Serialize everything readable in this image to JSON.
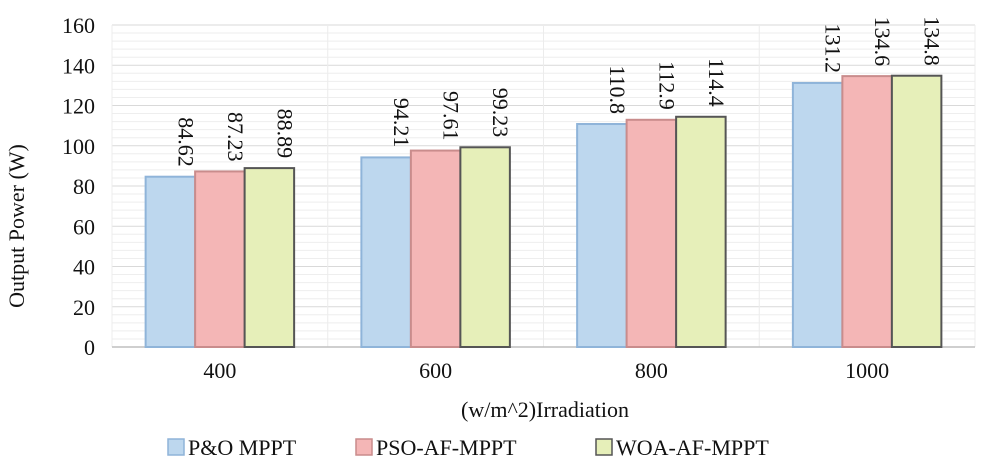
{
  "chart_data": {
    "type": "bar",
    "title": "",
    "xlabel": "(w/m^2)Irradiation",
    "ylabel": "Output Power (W)",
    "ylim": [
      0,
      160
    ],
    "yticks": [
      0,
      20,
      40,
      60,
      80,
      100,
      120,
      140,
      160
    ],
    "categories": [
      "400",
      "600",
      "800",
      "1000"
    ],
    "grid": true,
    "legend_position": "bottom",
    "series": [
      {
        "name": "P&O MPPT",
        "color": "#bdd7ee",
        "edge": "#8fb4d9",
        "values": [
          84.62,
          94.21,
          110.8,
          131.2
        ],
        "labels": [
          "84.62",
          "94.21",
          "110.8",
          "131.2"
        ]
      },
      {
        "name": "PSO-AF-MPPT",
        "color": "#f4b6b6",
        "edge": "#c98c8c",
        "values": [
          87.23,
          97.61,
          112.9,
          134.6
        ],
        "labels": [
          "87.23",
          "97.61",
          "112.9",
          "134.6"
        ]
      },
      {
        "name": "WOA-AF-MPPT",
        "color": "#e6efb9",
        "edge": "#555555",
        "values": [
          88.89,
          99.23,
          114.4,
          134.8
        ],
        "labels": [
          "88.89",
          "99.23",
          "114.4",
          "134.8"
        ]
      }
    ]
  }
}
